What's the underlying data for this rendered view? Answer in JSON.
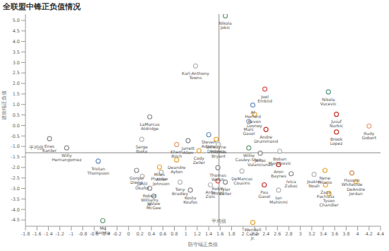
{
  "chart_data": {
    "type": "scatter",
    "title": "全联盟中锋正负值情况",
    "x_label": "防守端正负值",
    "y_label": "进攻端正负值",
    "marker": "circle",
    "grid": false,
    "average": {
      "x": 1.58,
      "y": -1.3,
      "label": "平均值"
    },
    "xlim": [
      -1.8,
      4.4
    ],
    "xticks": [
      -1.8,
      -1.6,
      -1.4,
      -1.2,
      -1,
      -0.8,
      -0.6,
      -0.4,
      -0.2,
      0,
      0.2,
      0.4,
      0.6,
      0.8,
      1,
      1.2,
      1.4,
      1.6,
      1.8,
      2,
      2.2,
      2.4,
      2.6,
      2.8,
      3,
      3.2,
      3.4,
      3.6,
      3.8,
      4,
      4.2,
      4.4
    ],
    "ylim": [
      -4.8,
      5.3
    ],
    "yticks": [
      {
        "value": -4.5,
        "label": "-4.5"
      },
      {
        "value": -4,
        "label": "-4.0"
      },
      {
        "value": -3.5,
        "label": "-3.5"
      },
      {
        "value": -3,
        "label": "-3.0"
      },
      {
        "value": -2.5,
        "label": "-2.5"
      },
      {
        "value": -2,
        "label": "-2.0"
      },
      {
        "value": -1.5,
        "label": "-1.5"
      },
      {
        "value": -1,
        "label": "-1.0"
      },
      {
        "value": -0.5,
        "label": "-0.5"
      },
      {
        "value": 0,
        "label": "0.0"
      },
      {
        "value": 0.5,
        "label": "0.5"
      },
      {
        "value": 1,
        "label": "1.0"
      },
      {
        "value": 1.5,
        "label": "1.5"
      },
      {
        "value": 2,
        "label": "2.0"
      },
      {
        "value": 2.5,
        "label": "2.5"
      },
      {
        "value": 3,
        "label": "3.0"
      },
      {
        "value": 3.5,
        "label": "3.5"
      },
      {
        "value": 4,
        "label": "4.0"
      },
      {
        "value": 4.5,
        "label": "4.5"
      },
      {
        "value": 5,
        "label": "5.0"
      }
    ],
    "labels": [
      "Nikola Jokic",
      "Karl-Anthony Towns",
      "Joel Embiid",
      "Nikola Vucevic",
      "LaMarcus Aldridge",
      "Al Horford",
      "Kevon Looney",
      "Jusuf Nurkic",
      "Marc Gasol",
      "Andre Drummond",
      "Brook Lopez",
      "Rudy Gobert",
      "Enes Kanter",
      "Willy Hernangomez",
      "Serge Ibaka",
      "Steven Adams",
      "Jarrett Allen",
      "Dewayne Dedmon",
      "Khem Birch",
      "Thomas Bryant",
      "Cody Zeller",
      "Willie Cauley-Stein",
      "Boban Marjanovic",
      "Deandre Ayton",
      "Jonas Valanciunas",
      "Tristan Thompson",
      "Gorgui Dieng",
      "Miles Plumlee",
      "Thomas Welsh",
      "DeMarcus Cousins",
      "Aron Baynes",
      "Ivica Zubac",
      "Joakim Noah",
      "Nene Hilario",
      "Hassan Whiteside",
      "Jahlil Okafor",
      "Amir Johnson",
      "Robin Lopez",
      "Tyler Zeller",
      "Tony Bradley",
      "Pau Gasol",
      "Zaza Pachulia",
      "DeAndre Jordan",
      "Robert Williams III",
      "Ante Zizic",
      "Ian Mahinmi",
      "Kosta Koufos",
      "JaVale McGee",
      "Tyson Chandler",
      "Mo Bamba",
      "Wendell Carter Jr."
    ],
    "x": [
      1.69,
      1.17,
      2.38,
      3.49,
      0.37,
      2.17,
      2.2,
      3.63,
      2.1,
      2.4,
      3.63,
      4.2,
      -1.38,
      -1.08,
      0.23,
      1.4,
      1.04,
      1.53,
      0.84,
      1.57,
      1.23,
      2.1,
      2.64,
      0.84,
      2.3,
      -0.53,
      0.14,
      0.54,
      1.56,
      1.98,
      2.62,
      2.84,
      3.24,
      3.43,
      3.9,
      0.24,
      0.57,
      1.56,
      1.69,
      0.9,
      2.37,
      3.44,
      3.97,
      0.37,
      1.43,
      2.62,
      1.08,
      0.44,
      3.5,
      -0.45,
      2.17
    ],
    "values": [
      5.22,
      2.83,
      1.73,
      1.6,
      0.41,
      0.97,
      0.53,
      0.53,
      0.19,
      -0.19,
      -0.31,
      -0.03,
      -0.63,
      -1.07,
      -0.66,
      -0.44,
      -0.72,
      -0.66,
      -0.91,
      -0.91,
      -1.2,
      -1.07,
      -1.23,
      -1.64,
      -1.32,
      -1.7,
      -2.14,
      -1.98,
      -2.01,
      -2.17,
      -1.86,
      -2.3,
      -2.33,
      -2.14,
      -2.26,
      -2.42,
      -2.23,
      -2.64,
      -2.7,
      -2.7,
      -2.83,
      -2.83,
      -2.67,
      -2.99,
      -2.83,
      -3.08,
      -3.08,
      -3.36,
      -3.24,
      -4.53,
      -4.62
    ],
    "colors": [
      "#6a9a7a",
      "#b8b8b8",
      "#d9534f",
      "#5c9a8a",
      "#8c8c8c",
      "#6b8fbf",
      "#e8a838",
      "#c0392b",
      "#7f9fbf",
      "#c9302c",
      "#c0392b",
      "#e8a07a",
      "#8c8c8c",
      "#8c8c8c",
      "#b8b8b8",
      "#6b8fbf",
      "#8c8c8c",
      "#e8a838",
      "#e8a07a",
      "#b8b8b8",
      "#e8a838",
      "#6a9a7a",
      "#b8b8b8",
      "#e8a838",
      "#8c8c8c",
      "#6b8fbf",
      "#8c8c8c",
      "#e8a838",
      "#8c8c8c",
      "#b8b8b8",
      "#c9302c",
      "#8c8c8c",
      "#b8b8b8",
      "#e8a838",
      "#d98c5f",
      "#b8b8b8",
      "#b8b8b8",
      "#d9534f",
      "#8c8c8c",
      "#b8b8b8",
      "#c9302c",
      "#e8a838",
      "#e8a838",
      "#8c8c8c",
      "#b8b8b8",
      "#b8b8b8",
      "#8c8c8c",
      "#8c8c8c",
      "#e8a838",
      "#6a9a7a",
      "#e8a838"
    ]
  }
}
